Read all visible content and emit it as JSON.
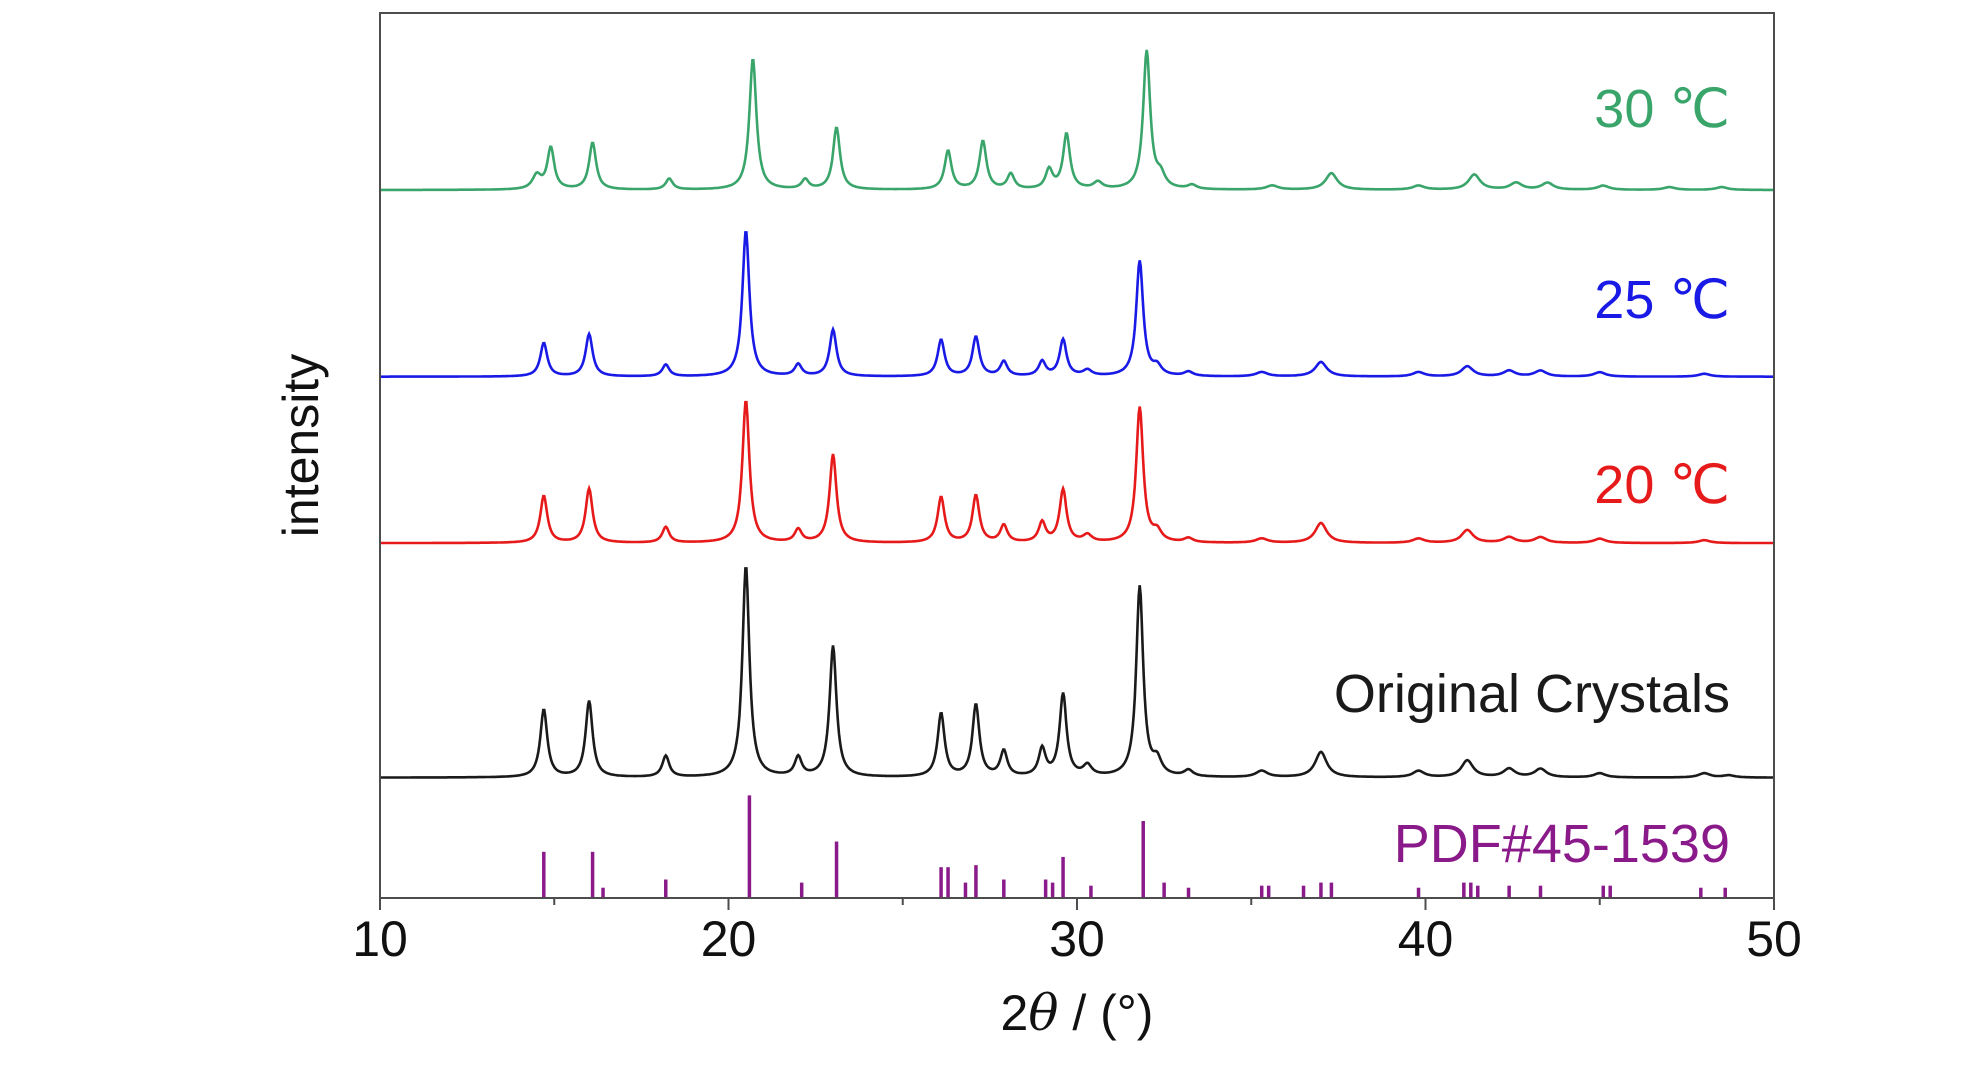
{
  "chart_data": {
    "type": "line",
    "title": "",
    "xlabel": "2θ / (°)",
    "xlabel_prefix": "2",
    "xlabel_theta": "θ",
    "xlabel_suffix": " / (°)",
    "ylabel": "intensity",
    "xlim": [
      10,
      50
    ],
    "xticks": [
      10,
      20,
      30,
      40,
      50
    ],
    "ylim": [
      0,
      1
    ],
    "grid": false,
    "legend": "inline-right",
    "series": [
      {
        "name": "30 ℃",
        "color": "#3aa56b",
        "baseline": 0.8,
        "scale": 0.156,
        "peaks": [
          [
            14.5,
            0.1,
            0.15
          ],
          [
            14.9,
            0.3,
            0.12
          ],
          [
            16.1,
            0.34,
            0.12
          ],
          [
            18.3,
            0.08,
            0.12
          ],
          [
            20.7,
            0.95,
            0.12
          ],
          [
            22.2,
            0.07,
            0.12
          ],
          [
            23.1,
            0.45,
            0.12
          ],
          [
            26.3,
            0.28,
            0.12
          ],
          [
            27.3,
            0.35,
            0.12
          ],
          [
            28.1,
            0.11,
            0.12
          ],
          [
            29.2,
            0.14,
            0.12
          ],
          [
            29.7,
            0.4,
            0.12
          ],
          [
            30.6,
            0.05,
            0.15
          ],
          [
            32.0,
            1.0,
            0.12
          ],
          [
            32.4,
            0.09,
            0.15
          ],
          [
            33.3,
            0.03,
            0.15
          ],
          [
            35.6,
            0.03,
            0.2
          ],
          [
            37.3,
            0.12,
            0.2
          ],
          [
            39.8,
            0.03,
            0.2
          ],
          [
            41.4,
            0.11,
            0.2
          ],
          [
            42.6,
            0.05,
            0.2
          ],
          [
            43.5,
            0.05,
            0.2
          ],
          [
            45.1,
            0.03,
            0.2
          ],
          [
            47.0,
            0.02,
            0.2
          ],
          [
            48.5,
            0.02,
            0.2
          ]
        ]
      },
      {
        "name": "25 ℃",
        "color": "#1a1ae6",
        "baseline": 0.589,
        "scale": 0.165,
        "peaks": [
          [
            14.7,
            0.23,
            0.12
          ],
          [
            16.0,
            0.29,
            0.12
          ],
          [
            18.2,
            0.08,
            0.12
          ],
          [
            20.5,
            1.0,
            0.12
          ],
          [
            22.0,
            0.08,
            0.12
          ],
          [
            23.0,
            0.32,
            0.12
          ],
          [
            26.1,
            0.25,
            0.12
          ],
          [
            27.1,
            0.27,
            0.12
          ],
          [
            27.9,
            0.1,
            0.12
          ],
          [
            29.0,
            0.1,
            0.12
          ],
          [
            29.6,
            0.25,
            0.12
          ],
          [
            30.3,
            0.04,
            0.15
          ],
          [
            31.8,
            0.79,
            0.12
          ],
          [
            32.3,
            0.06,
            0.15
          ],
          [
            33.2,
            0.03,
            0.15
          ],
          [
            35.3,
            0.03,
            0.2
          ],
          [
            37.0,
            0.1,
            0.2
          ],
          [
            39.8,
            0.03,
            0.2
          ],
          [
            41.2,
            0.07,
            0.2
          ],
          [
            42.4,
            0.04,
            0.2
          ],
          [
            43.3,
            0.04,
            0.2
          ],
          [
            45.0,
            0.03,
            0.2
          ],
          [
            48.0,
            0.02,
            0.2
          ]
        ]
      },
      {
        "name": "20 ℃",
        "color": "#e61a1a",
        "baseline": 0.401,
        "scale": 0.161,
        "peaks": [
          [
            14.7,
            0.33,
            0.12
          ],
          [
            16.0,
            0.38,
            0.12
          ],
          [
            18.2,
            0.11,
            0.12
          ],
          [
            20.5,
            1.0,
            0.12
          ],
          [
            22.0,
            0.09,
            0.12
          ],
          [
            23.0,
            0.62,
            0.12
          ],
          [
            26.1,
            0.32,
            0.12
          ],
          [
            27.1,
            0.33,
            0.12
          ],
          [
            27.9,
            0.12,
            0.12
          ],
          [
            29.0,
            0.14,
            0.12
          ],
          [
            29.6,
            0.37,
            0.12
          ],
          [
            30.3,
            0.05,
            0.15
          ],
          [
            31.8,
            0.95,
            0.12
          ],
          [
            32.3,
            0.07,
            0.15
          ],
          [
            33.2,
            0.03,
            0.15
          ],
          [
            35.3,
            0.03,
            0.2
          ],
          [
            37.0,
            0.14,
            0.2
          ],
          [
            39.8,
            0.03,
            0.2
          ],
          [
            41.2,
            0.09,
            0.2
          ],
          [
            42.4,
            0.04,
            0.2
          ],
          [
            43.3,
            0.04,
            0.2
          ],
          [
            45.0,
            0.03,
            0.2
          ],
          [
            48.0,
            0.02,
            0.2
          ]
        ]
      },
      {
        "name": "Original Crystals",
        "color": "#1a1a1a",
        "baseline": 0.136,
        "scale": 0.239,
        "peaks": [
          [
            14.7,
            0.32,
            0.12
          ],
          [
            16.0,
            0.36,
            0.12
          ],
          [
            18.2,
            0.1,
            0.12
          ],
          [
            20.5,
            1.0,
            0.12
          ],
          [
            22.0,
            0.09,
            0.12
          ],
          [
            23.0,
            0.62,
            0.12
          ],
          [
            26.1,
            0.3,
            0.12
          ],
          [
            27.1,
            0.34,
            0.12
          ],
          [
            27.9,
            0.12,
            0.12
          ],
          [
            29.0,
            0.13,
            0.12
          ],
          [
            29.6,
            0.39,
            0.12
          ],
          [
            30.3,
            0.05,
            0.15
          ],
          [
            31.8,
            0.9,
            0.12
          ],
          [
            32.3,
            0.07,
            0.15
          ],
          [
            33.2,
            0.03,
            0.15
          ],
          [
            35.3,
            0.03,
            0.2
          ],
          [
            37.0,
            0.12,
            0.2
          ],
          [
            39.8,
            0.03,
            0.2
          ],
          [
            41.2,
            0.08,
            0.2
          ],
          [
            42.4,
            0.04,
            0.2
          ],
          [
            43.3,
            0.04,
            0.2
          ],
          [
            45.0,
            0.02,
            0.2
          ],
          [
            48.0,
            0.02,
            0.2
          ],
          [
            48.7,
            0.01,
            0.2
          ]
        ]
      }
    ],
    "reference": {
      "name": "PDF#45-1539",
      "color": "#8a1a8a",
      "baseline": 0.0,
      "scale": 0.116,
      "lines": [
        [
          14.7,
          0.45
        ],
        [
          16.1,
          0.45
        ],
        [
          16.4,
          0.1
        ],
        [
          18.2,
          0.18
        ],
        [
          20.6,
          1.0
        ],
        [
          22.1,
          0.15
        ],
        [
          23.1,
          0.55
        ],
        [
          26.1,
          0.3
        ],
        [
          26.3,
          0.3
        ],
        [
          26.8,
          0.15
        ],
        [
          27.1,
          0.32
        ],
        [
          27.9,
          0.18
        ],
        [
          29.1,
          0.18
        ],
        [
          29.3,
          0.15
        ],
        [
          29.6,
          0.4
        ],
        [
          30.4,
          0.12
        ],
        [
          31.9,
          0.75
        ],
        [
          32.5,
          0.15
        ],
        [
          33.2,
          0.1
        ],
        [
          35.3,
          0.12
        ],
        [
          35.5,
          0.12
        ],
        [
          36.5,
          0.12
        ],
        [
          37.0,
          0.15
        ],
        [
          37.3,
          0.15
        ],
        [
          39.8,
          0.1
        ],
        [
          41.1,
          0.15
        ],
        [
          41.3,
          0.15
        ],
        [
          41.5,
          0.12
        ],
        [
          42.4,
          0.12
        ],
        [
          43.3,
          0.12
        ],
        [
          45.1,
          0.12
        ],
        [
          45.3,
          0.12
        ],
        [
          47.9,
          0.1
        ],
        [
          48.6,
          0.1
        ]
      ]
    }
  }
}
